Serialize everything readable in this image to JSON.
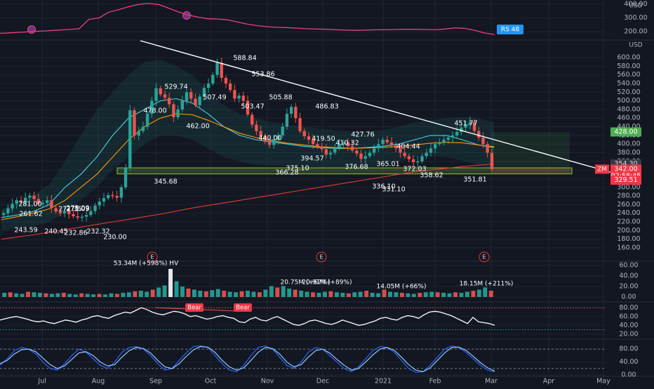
{
  "colors": {
    "background": "#131722",
    "grid": "#1f2430",
    "axis_text": "#b2b5be",
    "up": "#26a69a",
    "down": "#ef5350",
    "trendline": "#ffffff",
    "support_zone": "#8bc34a",
    "ma_red": "#e53935",
    "ma_cyan": "#4dd0e1",
    "ma_orange": "#ff9800",
    "ma_white": "#d1d4dc",
    "rs_line": "#ec407a",
    "rs_axis": "#d1d4dc",
    "tag_green": "#4caf50",
    "tag_red": "#f23645",
    "tag_blue": "#2196f3"
  },
  "time_axis": {
    "labels": [
      "Jul",
      "Aug",
      "Sep",
      "Oct",
      "Nov",
      "Dec",
      "2021",
      "Feb",
      "Mar",
      "Apr",
      "May"
    ]
  },
  "rs_panel": {
    "unit": "USD",
    "ticks": [
      "400.00",
      "300.00",
      "200.00"
    ],
    "tag": "RS 48"
  },
  "price_panel": {
    "unit": "USD",
    "symbol_tag": "ZM",
    "ticks": [
      "600.00",
      "580.00",
      "560.00",
      "540.00",
      "520.00",
      "500.00",
      "480.00",
      "460.00",
      "440.00",
      "420.00",
      "400.00",
      "380.00",
      "360.00",
      "340.00",
      "320.00",
      "300.00",
      "280.00",
      "260.00",
      "240.00",
      "220.00",
      "200.00",
      "180.00",
      "160.00"
    ],
    "tags": {
      "green": "428.00",
      "gray": "354.30",
      "red_price": "342.00",
      "red_time": "02:58:45",
      "red_low": "329.51",
      "hidden_tick": "360.00"
    },
    "earnings_marker": "E",
    "price_labels": [
      "588.84",
      "553.86",
      "529.74",
      "507.49",
      "505.88",
      "503.47",
      "478.00",
      "462.00",
      "440.00",
      "486.83",
      "419.50",
      "410.32",
      "427.76",
      "394.57",
      "376.68",
      "375.10",
      "366.28",
      "404.44",
      "365.01",
      "372.03",
      "358.62",
      "336.10",
      "331.10",
      "451.77",
      "351.81",
      "345.68",
      "281.00",
      "275.09",
      "271.35",
      "275.09",
      "261.62",
      "243.59",
      "240.45",
      "232.86",
      "232.32",
      "230.00"
    ]
  },
  "volume_panel": {
    "ticks": [
      "60.00",
      "40.00",
      "20.00",
      "0.00"
    ],
    "labels": [
      "53.34M (+598%) HV",
      "20.75M (+67%)",
      "20.91M (+89%)",
      "14.05M (+66%)",
      "18.15M (+211%)"
    ]
  },
  "rsi_panel": {
    "ticks": [
      "80.00",
      "60.00",
      "40.00",
      "20.00"
    ],
    "bear_labels": [
      "Bear",
      "Bear"
    ]
  },
  "stoch_panel": {
    "ticks": [
      "80.00",
      "40.00",
      "0.00"
    ]
  },
  "chart_data": [
    {
      "type": "line",
      "title": "",
      "series": [
        {
          "name": "RS",
          "values": [
            188,
            192,
            196,
            200,
            204,
            208,
            212,
            216,
            222,
            290,
            300,
            342,
            360,
            382,
            398,
            405,
            398,
            372,
            344,
            322,
            306,
            294,
            292,
            286,
            270,
            255,
            244,
            236,
            232,
            230,
            226,
            222,
            220,
            218,
            214,
            212,
            210,
            212,
            214,
            214,
            216,
            218,
            218,
            216,
            214,
            220,
            228,
            224,
            210,
            190,
            180
          ]
        }
      ],
      "ylim": [
        150,
        420
      ],
      "ylabel": "USD"
    },
    {
      "type": "candlestick",
      "title": "",
      "ylabel": "USD",
      "ylim": [
        160,
        610
      ],
      "annotations": {
        "trendline": {
          "from": [
            "Jul 2020",
            590
          ],
          "to": [
            "Mar 2021",
            360
          ]
        },
        "support_zone": [
          331,
          345
        ]
      },
      "series": [
        {
          "name": "price",
          "values": [
            240,
            251,
            262,
            270,
            265,
            276,
            281,
            273,
            262,
            264,
            270,
            252,
            244,
            240,
            245,
            238,
            233,
            230,
            232,
            236,
            245,
            258,
            267,
            275,
            282,
            280,
            276,
            300,
            345,
            478,
            420,
            430,
            440,
            470,
            500,
            529,
            515,
            507,
            492,
            462,
            480,
            500,
            520,
            505,
            490,
            510,
            530,
            540,
            560,
            588,
            553,
            540,
            525,
            505,
            512,
            500,
            468,
            445,
            430,
            418,
            405,
            398,
            410,
            420,
            440,
            470,
            486,
            460,
            430,
            418,
            410,
            400,
            394,
            388,
            376,
            380,
            392,
            400,
            404,
            395,
            385,
            378,
            366,
            372,
            380,
            390,
            400,
            410,
            404,
            398,
            390,
            380,
            372,
            365,
            358,
            360,
            372,
            380,
            390,
            400,
            404,
            410,
            415,
            420,
            428,
            438,
            445,
            451,
            430,
            415,
            400,
            380,
            342
          ]
        },
        {
          "name": "MA red",
          "values": [
            180,
            185,
            190,
            196,
            202,
            208,
            214,
            220,
            226,
            232,
            238,
            245,
            252,
            258,
            264,
            270,
            276,
            282,
            288,
            294,
            300,
            306,
            312,
            318,
            324,
            330,
            336,
            340,
            344,
            348,
            351,
            354
          ]
        },
        {
          "name": "MA cyan",
          "values": [
            230,
            236,
            244,
            260,
            300,
            330,
            370,
            420,
            460,
            480,
            500,
            505,
            495,
            470,
            440,
            420,
            410,
            405,
            400,
            395,
            392,
            390,
            390,
            392,
            395,
            400,
            410,
            420,
            420,
            410,
            398,
            392
          ]
        },
        {
          "name": "MA orange",
          "values": [
            225,
            232,
            240,
            250,
            270,
            300,
            330,
            370,
            410,
            440,
            460,
            470,
            468,
            455,
            440,
            425,
            415,
            408,
            402,
            398,
            394,
            392,
            390,
            391,
            392,
            395,
            398,
            402,
            404,
            403,
            398,
            394
          ]
        }
      ]
    },
    {
      "type": "bar",
      "title": "",
      "series": [
        {
          "name": "volume",
          "values": [
            8,
            9,
            7,
            6,
            10,
            9,
            8,
            7,
            6,
            7,
            8,
            6,
            5,
            7,
            6,
            5,
            6,
            5,
            7,
            6,
            8,
            9,
            11,
            12,
            10,
            14,
            18,
            22,
            53.34,
            30,
            20,
            16,
            14,
            12,
            11,
            13,
            15,
            12,
            10,
            9,
            11,
            12,
            10,
            9,
            14,
            20.75,
            18,
            20.91,
            16,
            14,
            12,
            10,
            9,
            8,
            10,
            11,
            9,
            8,
            7,
            9,
            10,
            12,
            8,
            7,
            14.05,
            10,
            9,
            8,
            7,
            6,
            8,
            9,
            10,
            9,
            8,
            7,
            9,
            8,
            10,
            12,
            14,
            18.15,
            12
          ]
        }
      ],
      "ylim": [
        0,
        60
      ]
    },
    {
      "type": "line",
      "title": "",
      "series": [
        {
          "name": "RSI",
          "values": [
            52,
            55,
            58,
            60,
            57,
            54,
            50,
            48,
            50,
            46,
            44,
            48,
            52,
            50,
            47,
            52,
            55,
            60,
            62,
            58,
            56,
            62,
            66,
            70,
            68,
            74,
            80,
            76,
            70,
            66,
            64,
            68,
            72,
            70,
            66,
            60,
            62,
            58,
            54,
            56,
            60,
            62,
            58,
            56,
            48,
            46,
            54,
            58,
            52,
            50,
            56,
            60,
            54,
            48,
            42,
            40,
            44,
            50,
            52,
            48,
            44,
            42,
            46,
            52,
            48,
            44,
            40,
            42,
            46,
            50,
            56,
            58,
            54,
            52,
            58,
            62,
            60,
            56,
            64,
            70,
            72,
            70,
            66,
            62,
            56,
            50,
            44,
            58,
            48,
            46,
            44,
            40
          ]
        }
      ],
      "ylim": [
        10,
        90
      ]
    },
    {
      "type": "line",
      "title": "",
      "series": [
        {
          "name": "%K",
          "values": [
            30,
            50,
            75,
            85,
            80,
            65,
            40,
            20,
            15,
            35,
            60,
            80,
            70,
            50,
            30,
            20,
            40,
            70,
            85,
            88,
            80,
            60,
            35,
            15,
            20,
            45,
            70,
            88,
            90,
            85,
            60,
            35,
            15,
            10,
            30,
            60,
            85,
            90,
            80,
            55,
            30,
            20,
            40,
            70,
            85,
            80,
            60,
            40,
            20,
            10,
            25,
            50,
            75,
            88,
            85,
            70,
            45,
            20,
            8,
            10,
            30,
            55,
            80,
            90,
            85,
            70,
            50,
            30,
            15,
            10
          ]
        },
        {
          "name": "%D",
          "values": [
            35,
            45,
            65,
            78,
            80,
            72,
            52,
            32,
            20,
            28,
            48,
            68,
            72,
            60,
            40,
            28,
            32,
            55,
            75,
            85,
            82,
            68,
            45,
            25,
            20,
            35,
            58,
            78,
            88,
            86,
            70,
            45,
            25,
            15,
            22,
            45,
            70,
            85,
            82,
            65,
            40,
            25,
            32,
            55,
            75,
            80,
            68,
            48,
            30,
            15,
            20,
            40,
            62,
            80,
            85,
            76,
            55,
            32,
            15,
            10,
            22,
            45,
            68,
            85,
            86,
            76,
            58,
            38,
            22,
            12
          ]
        }
      ],
      "ylim": [
        0,
        100
      ]
    }
  ]
}
